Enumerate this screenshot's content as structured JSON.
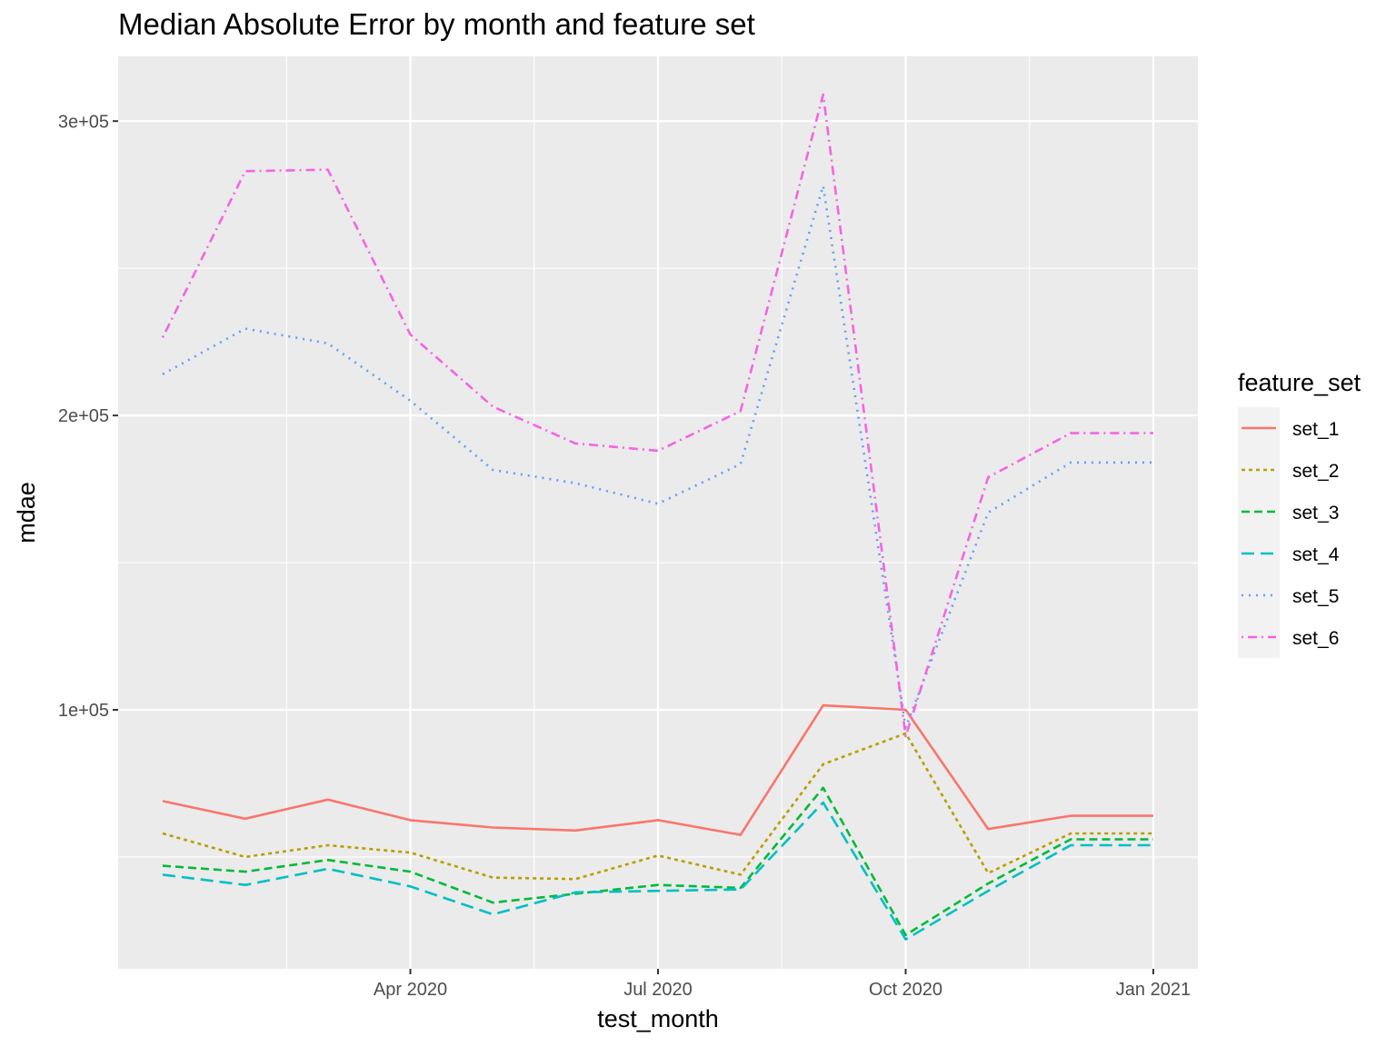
{
  "chart_data": {
    "type": "line",
    "title": "Median Absolute Error by month and feature set",
    "xlabel": "test_month",
    "ylabel": "mdae",
    "x": [
      "2020-01",
      "2020-02",
      "2020-03",
      "2020-04",
      "2020-05",
      "2020-06",
      "2020-07",
      "2020-08",
      "2020-09",
      "2020-10",
      "2020-11",
      "2020-12",
      "2021-01"
    ],
    "x_ticks": [
      {
        "date": "2020-04",
        "label": "Apr 2020"
      },
      {
        "date": "2020-07",
        "label": "Jul 2020"
      },
      {
        "date": "2020-10",
        "label": "Oct 2020"
      },
      {
        "date": "2021-01",
        "label": "Jan 2021"
      }
    ],
    "y_ticks": [
      {
        "value": 100000,
        "label": "1e+05"
      },
      {
        "value": 200000,
        "label": "2e+05"
      },
      {
        "value": 300000,
        "label": "3e+05"
      }
    ],
    "ylim": [
      12000,
      322000
    ],
    "grid": true,
    "legend": {
      "title": "feature_set",
      "position": "right"
    },
    "series": [
      {
        "name": "set_1",
        "color": "#F8766D",
        "dash": "solid",
        "values": [
          69000,
          63000,
          69500,
          62500,
          60000,
          59000,
          62500,
          57500,
          101500,
          100000,
          59500,
          64000,
          64000
        ]
      },
      {
        "name": "set_2",
        "color": "#B79F00",
        "dash": "short-dash",
        "values": [
          58000,
          50000,
          54000,
          51500,
          43000,
          42500,
          50500,
          44000,
          81500,
          92000,
          44500,
          58000,
          58000
        ]
      },
      {
        "name": "set_3",
        "color": "#00BA38",
        "dash": "dash",
        "values": [
          47000,
          45000,
          49000,
          45000,
          34500,
          37500,
          40500,
          39500,
          73500,
          23500,
          41000,
          56000,
          56000
        ]
      },
      {
        "name": "set_4",
        "color": "#00BFC4",
        "dash": "long-dash",
        "values": [
          44000,
          40500,
          46000,
          40000,
          30500,
          38000,
          38500,
          39000,
          68500,
          22000,
          38500,
          54000,
          54000
        ]
      },
      {
        "name": "set_5",
        "color": "#619CFF",
        "dash": "dot",
        "values": [
          214000,
          229500,
          224500,
          205000,
          181500,
          177000,
          170000,
          183500,
          278000,
          94000,
          167000,
          184000,
          184000
        ]
      },
      {
        "name": "set_6",
        "color": "#F564E3",
        "dash": "dot-dash",
        "values": [
          226500,
          283000,
          283500,
          227500,
          203000,
          190500,
          188000,
          201500,
          309000,
          91000,
          179000,
          194000,
          194000
        ]
      }
    ]
  }
}
